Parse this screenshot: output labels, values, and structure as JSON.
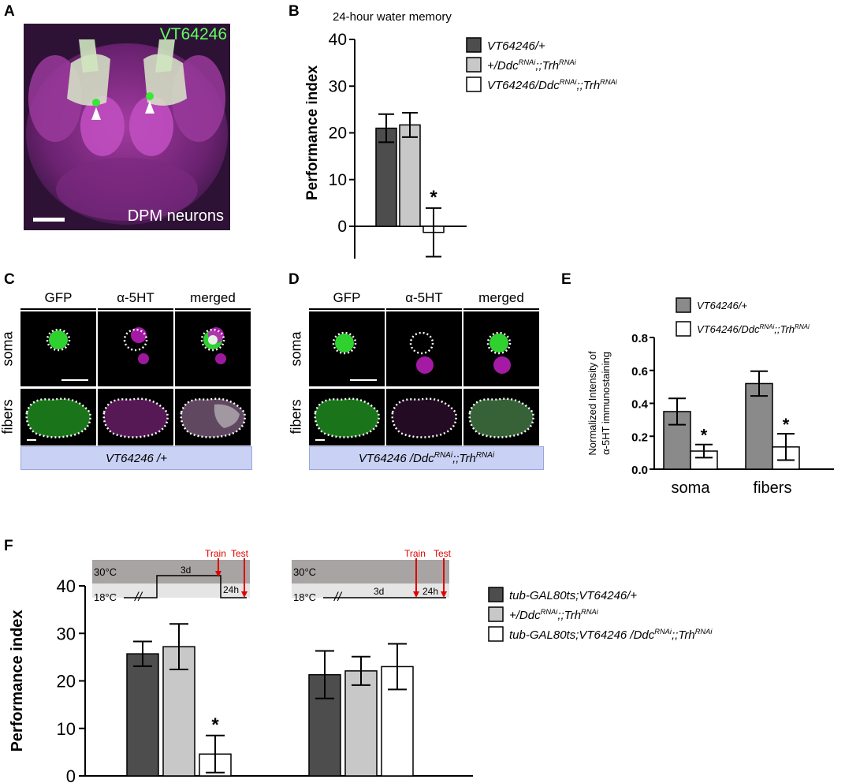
{
  "panels": {
    "a": "A",
    "b": "B",
    "c": "C",
    "d": "D",
    "e": "E",
    "f": "F"
  },
  "panel_a": {
    "green_label": "VT64246",
    "white_label": "DPM neurons"
  },
  "panel_c": {
    "columns": [
      "GFP",
      "α-5HT",
      "merged"
    ],
    "rows": [
      "soma",
      "fibers"
    ],
    "genotype": "VT64246 /+"
  },
  "panel_d": {
    "columns": [
      "GFP",
      "α-5HT",
      "merged"
    ],
    "rows": [
      "soma",
      "fibers"
    ],
    "genotype_base": "VT64246 /Ddc",
    "genotype_sup1": "RNAi",
    "genotype_mid": ";;Trh",
    "genotype_sup2": "RNAi"
  },
  "chart_data": [
    {
      "type": "bar",
      "panel": "B",
      "title": "24-hour water memory",
      "ylabel": "Performance index",
      "ylim": [
        0,
        40
      ],
      "yticks": [
        0,
        10,
        20,
        30,
        40
      ],
      "series": [
        {
          "name": "VT64246/+",
          "value": 21,
          "error": 3,
          "color": "#4d4d4d"
        },
        {
          "name": "+/Ddc;;Trh",
          "value": 21.7,
          "error": 2.6,
          "color": "#c8c8c8"
        },
        {
          "name": "VT64246/Ddc;;Trh",
          "value": -1.3,
          "error": 5.2,
          "color": "#ffffff",
          "significant": true
        }
      ],
      "legend": [
        {
          "pre": "VT64246/+",
          "sup1": "",
          "mid": "",
          "sup2": ""
        },
        {
          "pre": "+/Ddc",
          "sup1": "RNAi",
          "mid": ";;Trh",
          "sup2": "RNAi"
        },
        {
          "pre": "VT64246/Ddc",
          "sup1": "RNAi",
          "mid": ";;Trh",
          "sup2": "RNAi"
        }
      ],
      "significance_mark": "*"
    },
    {
      "type": "bar",
      "panel": "E",
      "ylabel_line1": "Normalized Intensity of",
      "ylabel_line2": "α-5HT immunostaining",
      "ylim": [
        0,
        0.8
      ],
      "yticks": [
        "0.0",
        "0.2",
        "0.4",
        "0.6",
        "0.8"
      ],
      "categories": [
        "soma",
        "fibers"
      ],
      "series": [
        {
          "name": "VT64246/+",
          "values": [
            0.35,
            0.52
          ],
          "errors": [
            0.08,
            0.075
          ],
          "color": "#8a8a8a"
        },
        {
          "name": "VT64246/Ddc;;Trh",
          "values": [
            0.11,
            0.135
          ],
          "errors": [
            0.04,
            0.08
          ],
          "color": "#ffffff"
        }
      ],
      "legend": [
        {
          "pre": "VT64246/+",
          "sup1": "",
          "mid": "",
          "sup2": ""
        },
        {
          "pre": "VT64246/Ddc",
          "sup1": "RNAi",
          "mid": ";;Trh",
          "sup2": "RNAi"
        }
      ],
      "significance_mark": "*"
    },
    {
      "type": "bar",
      "panel": "F",
      "ylabel": "Performance index",
      "ylim": [
        0,
        40
      ],
      "yticks": [
        0,
        10,
        20,
        30,
        40
      ],
      "groups": [
        {
          "values": [
            25.7,
            27.2,
            4.6
          ],
          "errors": [
            2.6,
            4.8,
            3.9
          ],
          "significant": [
            false,
            false,
            true
          ]
        },
        {
          "values": [
            21.3,
            22.1,
            23.0
          ],
          "errors": [
            5.0,
            3.0,
            4.8
          ],
          "significant": [
            false,
            false,
            false
          ]
        }
      ],
      "colors": [
        "#4d4d4d",
        "#c8c8c8",
        "#ffffff"
      ],
      "legend": [
        {
          "pre": "tub-GAL80ts;VT64246/+",
          "sup1": "",
          "mid": "",
          "sup2": ""
        },
        {
          "pre": "+/Ddc",
          "sup1": "RNAi",
          "mid": ";;Trh",
          "sup2": "RNAi"
        },
        {
          "pre": "tub-GAL80ts;VT64246 /Ddc",
          "sup1": "RNAi",
          "mid": ";;Trh",
          "sup2": "RNAi"
        }
      ],
      "significance_mark": "*",
      "schedule": {
        "hot": "30°C",
        "cold": "18°C",
        "days": "3d",
        "hours": "24h",
        "train": "Train",
        "test": "Test",
        "break": "//"
      }
    }
  ]
}
